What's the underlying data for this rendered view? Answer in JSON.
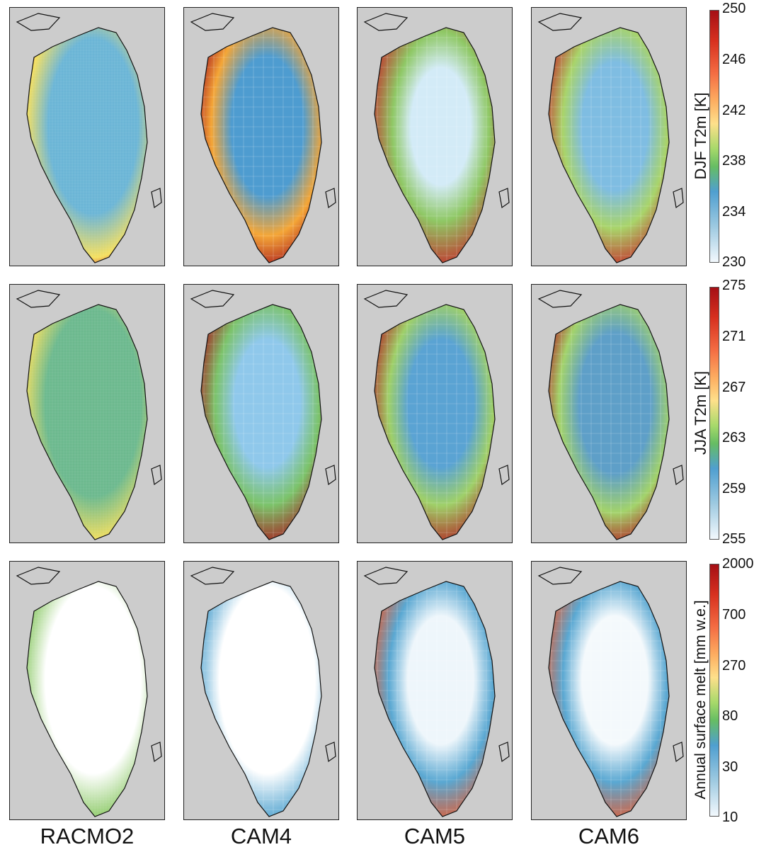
{
  "columns": [
    "RACMO2",
    "CAM4",
    "CAM5",
    "CAM6"
  ],
  "rows": [
    {
      "label": "DJF T2m [K]",
      "ticks": [
        "250",
        "246",
        "242",
        "238",
        "234",
        "230"
      ],
      "fields": [
        {
          "edge": "#d0312c",
          "mid": "#f6e05e",
          "core": "#6bb5d6",
          "coreR": 0.75
        },
        {
          "edge": "#a91a1e",
          "mid": "#f4a637",
          "core": "#4e9cd0",
          "coreR": 0.6
        },
        {
          "edge": "#c62a2a",
          "mid": "#8fc865",
          "core": "#d3ebf7",
          "coreR": 0.5
        },
        {
          "edge": "#c62a2a",
          "mid": "#a9d46a",
          "core": "#7fbde2",
          "coreR": 0.55
        }
      ]
    },
    {
      "label": "JJA T2m [K]",
      "ticks": [
        "275",
        "271",
        "267",
        "263",
        "259",
        "255"
      ],
      "fields": [
        {
          "edge": "#d0312c",
          "mid": "#f6e05e",
          "core": "#6cb98e",
          "coreR": 0.8
        },
        {
          "edge": "#a91a1e",
          "mid": "#7cc36a",
          "core": "#8fc8eb",
          "coreR": 0.55
        },
        {
          "edge": "#b32323",
          "mid": "#9fd069",
          "core": "#5aa3d3",
          "coreR": 0.55
        },
        {
          "edge": "#b32323",
          "mid": "#a3d36b",
          "core": "#5e9fc8",
          "coreR": 0.6
        }
      ]
    },
    {
      "label": "Annual surface melt [mm w.e.]",
      "ticks": [
        "2000",
        "700",
        "270",
        "80",
        "30",
        "10"
      ],
      "fields": [
        {
          "edge": "#d0312c",
          "mid": "#8fcb6b",
          "core": "#ffffff",
          "coreR": 0.8
        },
        {
          "edge": "#e5502f",
          "mid": "#5aa8d2",
          "core": "#ffffff",
          "coreR": 0.8
        },
        {
          "edge": "#e55a2f",
          "mid": "#5aa8d2",
          "core": "#eef6fb",
          "coreR": 0.55
        },
        {
          "edge": "#e55a2f",
          "mid": "#5aa8d2",
          "core": "#f4f9fc",
          "coreR": 0.55
        }
      ]
    }
  ],
  "colors": {
    "ocean": "#cccccc",
    "coast": "#111111",
    "cbar_low": "#f2f8fd",
    "cbar_high": "#a50f15"
  }
}
